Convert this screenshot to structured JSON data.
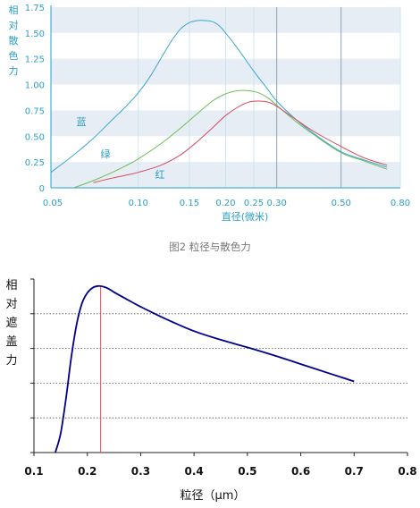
{
  "chart_data": [
    {
      "type": "line",
      "ylabel": "相对散色力",
      "xlabel": "直径(微米)",
      "xscale": "log",
      "xticks": [
        0.05,
        0.1,
        0.15,
        0.2,
        0.25,
        0.3,
        0.5,
        0.8
      ],
      "xtick_labels": [
        "0.05",
        "0.10",
        "0.15",
        "0.20",
        "0.25",
        "0.30",
        "0.50",
        "0.80"
      ],
      "yticks": [
        0,
        0.25,
        0.5,
        0.75,
        1.0,
        1.25,
        1.5,
        1.75
      ],
      "ytick_labels": [
        "0",
        "0.25",
        "0.50",
        "0.75",
        "1.00",
        "1.25",
        "1.50",
        "1.75"
      ],
      "xlim": [
        0.05,
        0.8
      ],
      "ylim": [
        0,
        1.75
      ],
      "series": [
        {
          "name": "蓝",
          "color": "#3aa6d6",
          "x": [
            0.05,
            0.06,
            0.07,
            0.08,
            0.09,
            0.1,
            0.11,
            0.12,
            0.13,
            0.14,
            0.15,
            0.16,
            0.17,
            0.18,
            0.19,
            0.2,
            0.22,
            0.25,
            0.28,
            0.3,
            0.35,
            0.4,
            0.5,
            0.6,
            0.72
          ],
          "y": [
            0.15,
            0.32,
            0.48,
            0.64,
            0.78,
            0.92,
            1.08,
            1.26,
            1.42,
            1.54,
            1.6,
            1.62,
            1.62,
            1.61,
            1.57,
            1.5,
            1.35,
            1.13,
            0.95,
            0.84,
            0.66,
            0.53,
            0.35,
            0.27,
            0.2
          ]
        },
        {
          "name": "绿",
          "color": "#6cbf58",
          "x": [
            0.06,
            0.07,
            0.08,
            0.09,
            0.1,
            0.12,
            0.14,
            0.16,
            0.18,
            0.2,
            0.22,
            0.24,
            0.26,
            0.28,
            0.3,
            0.35,
            0.4,
            0.5,
            0.6,
            0.72
          ],
          "y": [
            0.0,
            0.07,
            0.14,
            0.21,
            0.28,
            0.43,
            0.58,
            0.72,
            0.84,
            0.91,
            0.94,
            0.94,
            0.92,
            0.87,
            0.8,
            0.64,
            0.52,
            0.34,
            0.26,
            0.18
          ]
        },
        {
          "name": "红",
          "color": "#d64a5e",
          "x": [
            0.07,
            0.08,
            0.09,
            0.1,
            0.12,
            0.14,
            0.16,
            0.18,
            0.2,
            0.22,
            0.24,
            0.26,
            0.28,
            0.3,
            0.35,
            0.4,
            0.5,
            0.6,
            0.72
          ],
          "y": [
            0.05,
            0.09,
            0.12,
            0.15,
            0.22,
            0.32,
            0.45,
            0.58,
            0.7,
            0.78,
            0.83,
            0.84,
            0.83,
            0.79,
            0.66,
            0.55,
            0.4,
            0.29,
            0.22
          ]
        }
      ],
      "grid": true,
      "band_color": "#e6edf5",
      "axis_color": "#2a9fc6"
    },
    {
      "type": "line",
      "ylabel": "相对遮盖力",
      "xlabel": "粒径（μm）",
      "xticks": [
        0.1,
        0.2,
        0.3,
        0.4,
        0.5,
        0.6,
        0.7,
        0.8
      ],
      "xtick_labels": [
        "0.1",
        "0.2",
        "0.3",
        "0.4",
        "0.5",
        "0.6",
        "0.7",
        "0.8"
      ],
      "xlim": [
        0.1,
        0.8
      ],
      "ylim": [
        0,
        5
      ],
      "grid": true,
      "gridlines_y": [
        1,
        2,
        3,
        4
      ],
      "vline_x": 0.225,
      "vline_color": "#e04a5a",
      "series": [
        {
          "color": "#00008b",
          "x": [
            0.14,
            0.15,
            0.16,
            0.17,
            0.18,
            0.19,
            0.2,
            0.21,
            0.22,
            0.23,
            0.24,
            0.25,
            0.27,
            0.29,
            0.3,
            0.32,
            0.35,
            0.4,
            0.45,
            0.5,
            0.55,
            0.6,
            0.65,
            0.7
          ],
          "y": [
            0.0,
            0.55,
            1.55,
            2.75,
            3.7,
            4.3,
            4.6,
            4.75,
            4.8,
            4.78,
            4.72,
            4.62,
            4.45,
            4.28,
            4.2,
            4.05,
            3.83,
            3.5,
            3.25,
            3.03,
            2.8,
            2.55,
            2.3,
            2.05
          ]
        }
      ]
    }
  ],
  "labels": {
    "blue": "蓝",
    "green": "绿",
    "red": "红",
    "caption1": "图2 粒径与散色力"
  }
}
